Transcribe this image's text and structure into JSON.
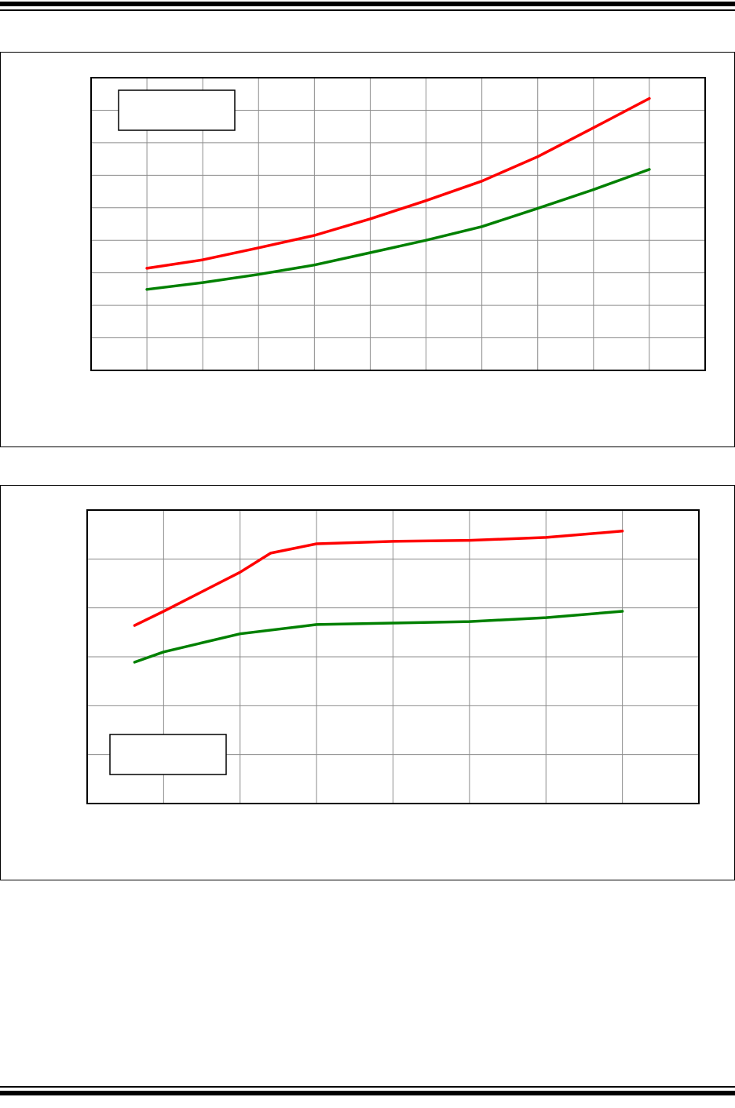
{
  "colors": {
    "series_a": "#ff0000",
    "series_b": "#008000",
    "grid": "#8c8c8c",
    "frame": "#000000"
  },
  "chart_data": [
    {
      "type": "line",
      "title": "",
      "xlabel": "",
      "ylabel": "",
      "xlim": [
        0,
        11
      ],
      "ylim": [
        0,
        9
      ],
      "grid": true,
      "legend": "top-left",
      "series": [
        {
          "color": "#ff0000",
          "x": [
            1,
            2,
            3,
            4,
            5,
            6,
            7,
            8,
            9,
            10
          ],
          "y": [
            3.14,
            3.4,
            3.77,
            4.15,
            4.66,
            5.22,
            5.82,
            6.57,
            7.46,
            8.36
          ]
        },
        {
          "color": "#008000",
          "x": [
            1,
            2,
            3,
            4,
            5,
            6,
            7,
            8,
            9,
            10
          ],
          "y": [
            2.49,
            2.7,
            2.95,
            3.24,
            3.62,
            4.0,
            4.42,
            4.98,
            5.56,
            6.18
          ]
        }
      ]
    },
    {
      "type": "line",
      "title": "",
      "xlabel": "",
      "ylabel": "",
      "xlim": [
        0,
        8
      ],
      "ylim": [
        0,
        6
      ],
      "grid": true,
      "legend": "bottom-left",
      "series": [
        {
          "color": "#ff0000",
          "x": [
            0.62,
            1,
            2,
            2.4,
            3,
            4,
            5,
            6,
            7
          ],
          "y": [
            3.64,
            3.93,
            4.73,
            5.12,
            5.31,
            5.36,
            5.38,
            5.44,
            5.57
          ]
        },
        {
          "color": "#008000",
          "x": [
            0.62,
            1,
            2,
            3,
            4,
            5,
            6,
            7
          ],
          "y": [
            2.89,
            3.1,
            3.47,
            3.66,
            3.69,
            3.72,
            3.8,
            3.93
          ]
        }
      ]
    }
  ]
}
